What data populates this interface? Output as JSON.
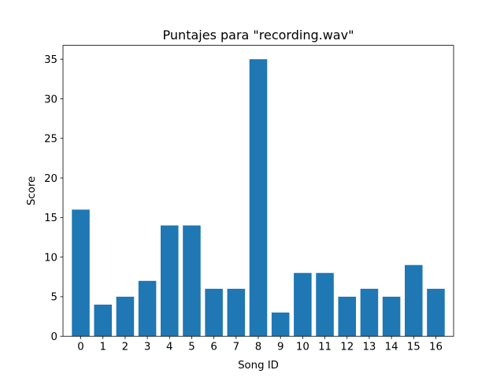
{
  "chart_data": {
    "type": "bar",
    "title": "Puntajes para \"recording.wav\"",
    "xlabel": "Song ID",
    "ylabel": "Score",
    "categories": [
      "0",
      "1",
      "2",
      "3",
      "4",
      "5",
      "6",
      "7",
      "8",
      "9",
      "10",
      "11",
      "12",
      "13",
      "14",
      "15",
      "16"
    ],
    "values": [
      16,
      4,
      5,
      7,
      14,
      14,
      6,
      6,
      35,
      3,
      8,
      8,
      5,
      6,
      5,
      9,
      6
    ],
    "ylim": [
      0,
      36.75
    ],
    "yticks": [
      0,
      5,
      10,
      15,
      20,
      25,
      30,
      35
    ],
    "grid": false,
    "bar_color": "#1f77b4"
  }
}
